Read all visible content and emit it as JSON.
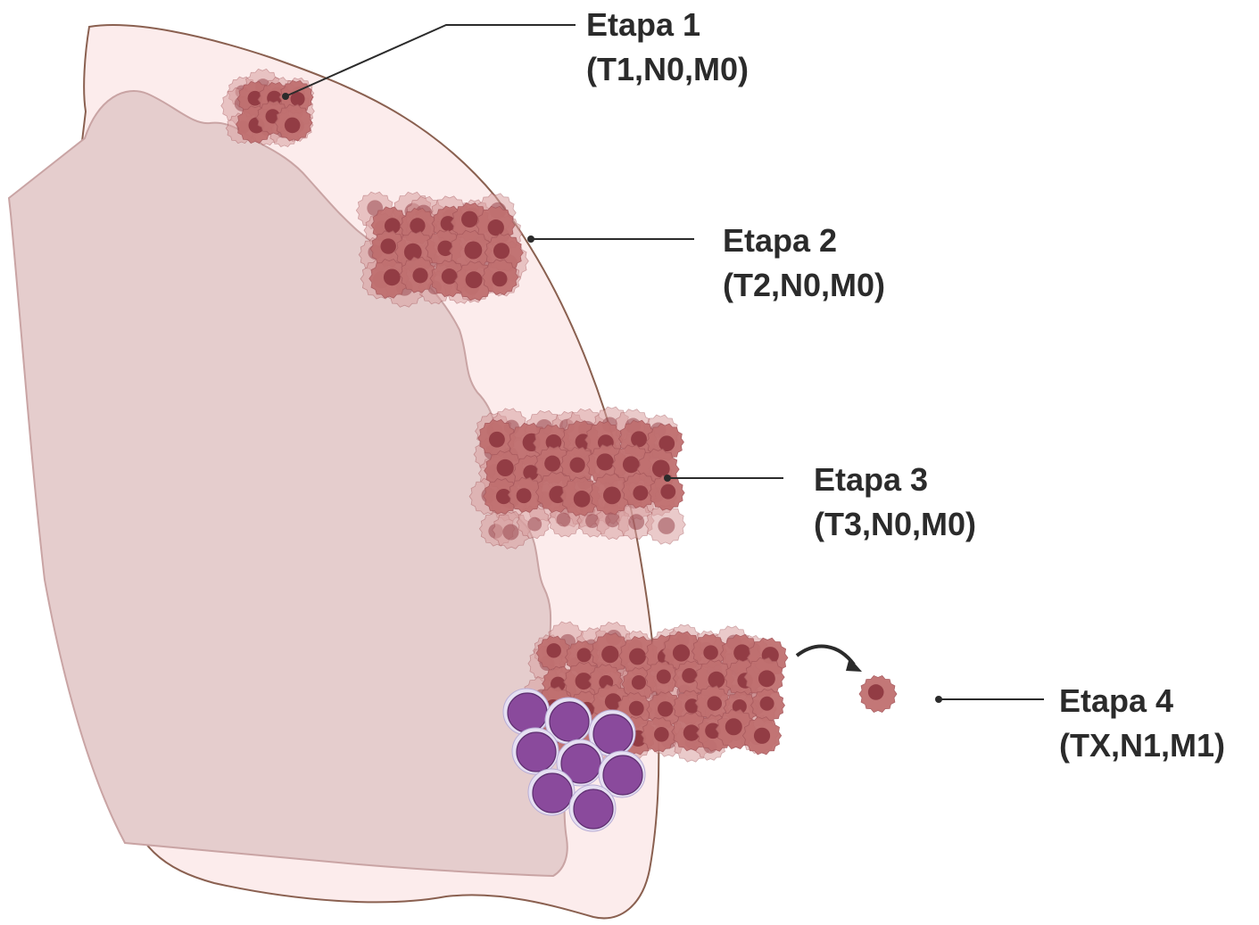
{
  "colors": {
    "pleura_fill": "#fcecec",
    "pleura_stroke": "#8a6050",
    "lung_fill": "#e5cdcd",
    "lung_stroke": "#c9a4a4",
    "tumor_cell": "#c07070",
    "tumor_cell_light": "#d9a0a0",
    "tumor_nucleus": "#923c44",
    "lymph_cell": "#8a4a9c",
    "lymph_rim": "#e6e0f2",
    "text": "#2b2b2b"
  },
  "stages": [
    {
      "name": "Etapa 1",
      "tnm": "(T1,N0,M0)"
    },
    {
      "name": "Etapa 2",
      "tnm": "(T2,N0,M0)"
    },
    {
      "name": "Etapa 3",
      "tnm": "(T3,N0,M0)"
    },
    {
      "name": "Etapa 4",
      "tnm": "(TX,N1,M1)"
    }
  ]
}
